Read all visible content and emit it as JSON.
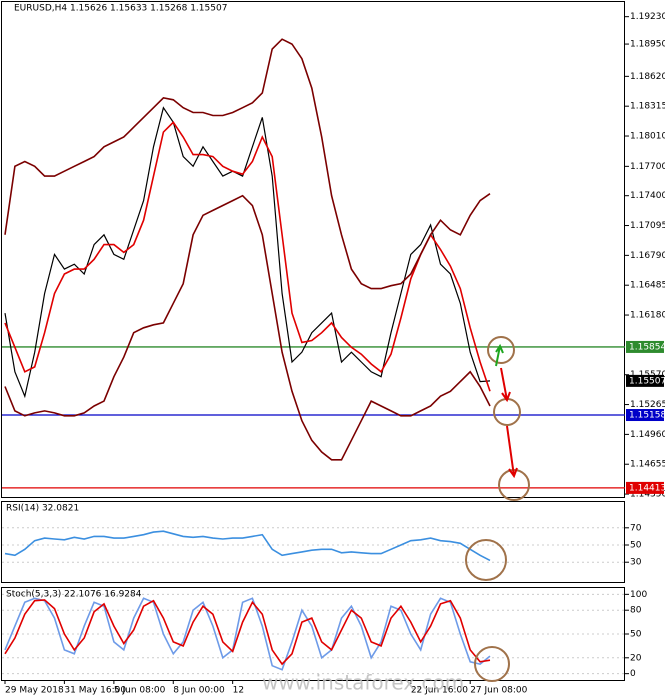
{
  "chart_data": [
    {
      "type": "line",
      "title": "EURUSD,H4  1.15626 1.15633 1.15268 1.15507",
      "categories": [
        "29 May 2018",
        null,
        null,
        null,
        null,
        null,
        "31 May 16:00",
        null,
        null,
        null,
        null,
        "5 Jun 08:00",
        null,
        null,
        null,
        null,
        null,
        "8 Jun 00:00",
        null,
        null,
        null,
        null,
        null,
        "12",
        null,
        null,
        null,
        null,
        null,
        null,
        null,
        null,
        null,
        null,
        null,
        null,
        null,
        null,
        null,
        null,
        null,
        "22 Jun 16:00",
        null,
        null,
        null,
        null,
        null,
        "27 Jun 08:00",
        null,
        null
      ],
      "series": [
        {
          "color": "#000000",
          "values": [
            1.162,
            1.156,
            1.1535,
            1.158,
            1.164,
            1.168,
            1.1665,
            1.167,
            1.166,
            1.169,
            1.17,
            1.168,
            1.1675,
            1.1705,
            1.1735,
            1.179,
            1.183,
            1.1815,
            1.178,
            1.177,
            1.179,
            1.1775,
            1.176,
            1.1765,
            1.176,
            1.179,
            1.182,
            1.176,
            1.164,
            1.157,
            1.158,
            1.16,
            1.161,
            1.162,
            1.157,
            1.158,
            1.157,
            1.156,
            1.1555,
            1.16,
            1.164,
            1.168,
            1.169,
            1.171,
            1.167,
            1.166,
            1.163,
            1.158,
            1.155,
            1.15507
          ]
        },
        {
          "color": "#e00000",
          "values": [
            1.161,
            1.1585,
            1.156,
            1.1565,
            1.16,
            1.164,
            1.166,
            1.1665,
            1.1665,
            1.1675,
            1.169,
            1.169,
            1.1682,
            1.169,
            1.1715,
            1.176,
            1.1805,
            1.1815,
            1.18,
            1.1782,
            1.1782,
            1.178,
            1.177,
            1.1765,
            1.1762,
            1.1775,
            1.18,
            1.178,
            1.17,
            1.162,
            1.159,
            1.1592,
            1.16,
            1.161,
            1.1595,
            1.1585,
            1.1578,
            1.1568,
            1.156,
            1.1578,
            1.1615,
            1.1655,
            1.168,
            1.17,
            1.1685,
            1.1668,
            1.1645,
            1.1605,
            1.157,
            1.154
          ]
        },
        {
          "color": "#7b0000",
          "values": [
            1.17,
            1.177,
            1.1775,
            1.177,
            1.176,
            1.176,
            1.1765,
            1.177,
            1.1775,
            1.178,
            1.179,
            1.1795,
            1.18,
            1.181,
            1.182,
            1.183,
            1.184,
            1.1838,
            1.183,
            1.1825,
            1.1825,
            1.1822,
            1.1822,
            1.1825,
            1.183,
            1.1835,
            1.1845,
            1.189,
            1.19,
            1.1895,
            1.188,
            1.185,
            1.18,
            1.174,
            1.17,
            1.1665,
            1.165,
            1.1645,
            1.1645,
            1.1648,
            1.165,
            1.166,
            1.168,
            1.17,
            1.1715,
            1.1705,
            1.17,
            1.172,
            1.1735,
            1.1742
          ]
        },
        {
          "color": "#7b0000",
          "values": [
            1.1545,
            1.152,
            1.1515,
            1.1518,
            1.152,
            1.1518,
            1.1515,
            1.1515,
            1.1518,
            1.1525,
            1.153,
            1.1555,
            1.1575,
            1.16,
            1.1605,
            1.1608,
            1.161,
            1.163,
            1.165,
            1.17,
            1.172,
            1.1725,
            1.173,
            1.1735,
            1.174,
            1.173,
            1.17,
            1.164,
            1.158,
            1.154,
            1.151,
            1.149,
            1.1478,
            1.147,
            1.147,
            1.149,
            1.151,
            1.153,
            1.1525,
            1.152,
            1.1515,
            1.1515,
            1.152,
            1.1525,
            1.1535,
            1.154,
            1.155,
            1.156,
            1.1545,
            1.1525
          ]
        }
      ],
      "levels": [
        {
          "value": 1.15854,
          "color": "#2e8b2e"
        },
        {
          "value": 1.15158,
          "color": "#0000c8"
        },
        {
          "value": 1.14413,
          "color": "#e00000"
        }
      ],
      "current": {
        "value": 1.15507,
        "color": "#000000"
      },
      "ylim": [
        1.1432,
        1.1938
      ],
      "yticks": [
        {
          "value": 1.1923,
          "label": "1.19230"
        },
        {
          "value": 1.1895,
          "label": "1.18950"
        },
        {
          "value": 1.1862,
          "label": "1.18620"
        },
        1.18315,
        {
          "value": 1.1801,
          "label": "1.18010"
        },
        {
          "value": 1.177,
          "label": "1.17700"
        },
        {
          "value": 1.174,
          "label": "1.17400"
        },
        1.17095,
        {
          "value": 1.1679,
          "label": "1.16790"
        },
        1.16485,
        {
          "value": 1.1618,
          "label": "1.16180"
        },
        {
          "value": 1.1557,
          "label": "1.15570"
        },
        1.15265,
        {
          "value": 1.1496,
          "label": "1.14960"
        },
        1.14655,
        {
          "value": 1.1435,
          "label": "1.14350"
        }
      ],
      "watermark": "www.instaforex.com"
    },
    {
      "type": "line",
      "title": "RSI(14) 32.0821",
      "series": [
        {
          "color": "#3b8fe0",
          "values": [
            40,
            38,
            45,
            55,
            58,
            57,
            56,
            59,
            57,
            60,
            60,
            58,
            58,
            60,
            62,
            65,
            66,
            63,
            60,
            59,
            60,
            58,
            57,
            58,
            58,
            60,
            62,
            45,
            38,
            40,
            42,
            44,
            45,
            45,
            41,
            42,
            41,
            40,
            40,
            45,
            50,
            55,
            56,
            58,
            55,
            54,
            52,
            45,
            38,
            32.0821
          ]
        }
      ],
      "ylim": [
        7,
        100
      ],
      "yticks": [
        70,
        50,
        30
      ]
    },
    {
      "type": "line",
      "title": "Stoch(5,3,3) 22.1076 16.9284",
      "series": [
        {
          "color": "#6e9be8",
          "values": [
            30,
            60,
            90,
            95,
            92,
            70,
            30,
            25,
            60,
            90,
            85,
            40,
            30,
            70,
            95,
            90,
            50,
            25,
            40,
            80,
            90,
            60,
            20,
            30,
            90,
            95,
            60,
            10,
            5,
            40,
            80,
            60,
            20,
            30,
            70,
            85,
            60,
            20,
            40,
            85,
            80,
            50,
            30,
            75,
            95,
            90,
            50,
            15,
            12,
            22.1076
          ]
        },
        {
          "color": "#e00000",
          "values": [
            25,
            45,
            75,
            92,
            93,
            82,
            50,
            30,
            45,
            78,
            88,
            60,
            38,
            55,
            85,
            92,
            70,
            40,
            35,
            65,
            85,
            75,
            40,
            28,
            65,
            90,
            75,
            30,
            12,
            25,
            65,
            70,
            40,
            30,
            55,
            80,
            70,
            40,
            35,
            70,
            85,
            65,
            40,
            60,
            88,
            92,
            70,
            30,
            15,
            16.9284
          ]
        }
      ],
      "ylim": [
        -8,
        108
      ],
      "yticks": [
        100,
        80,
        50,
        20,
        0
      ]
    }
  ]
}
